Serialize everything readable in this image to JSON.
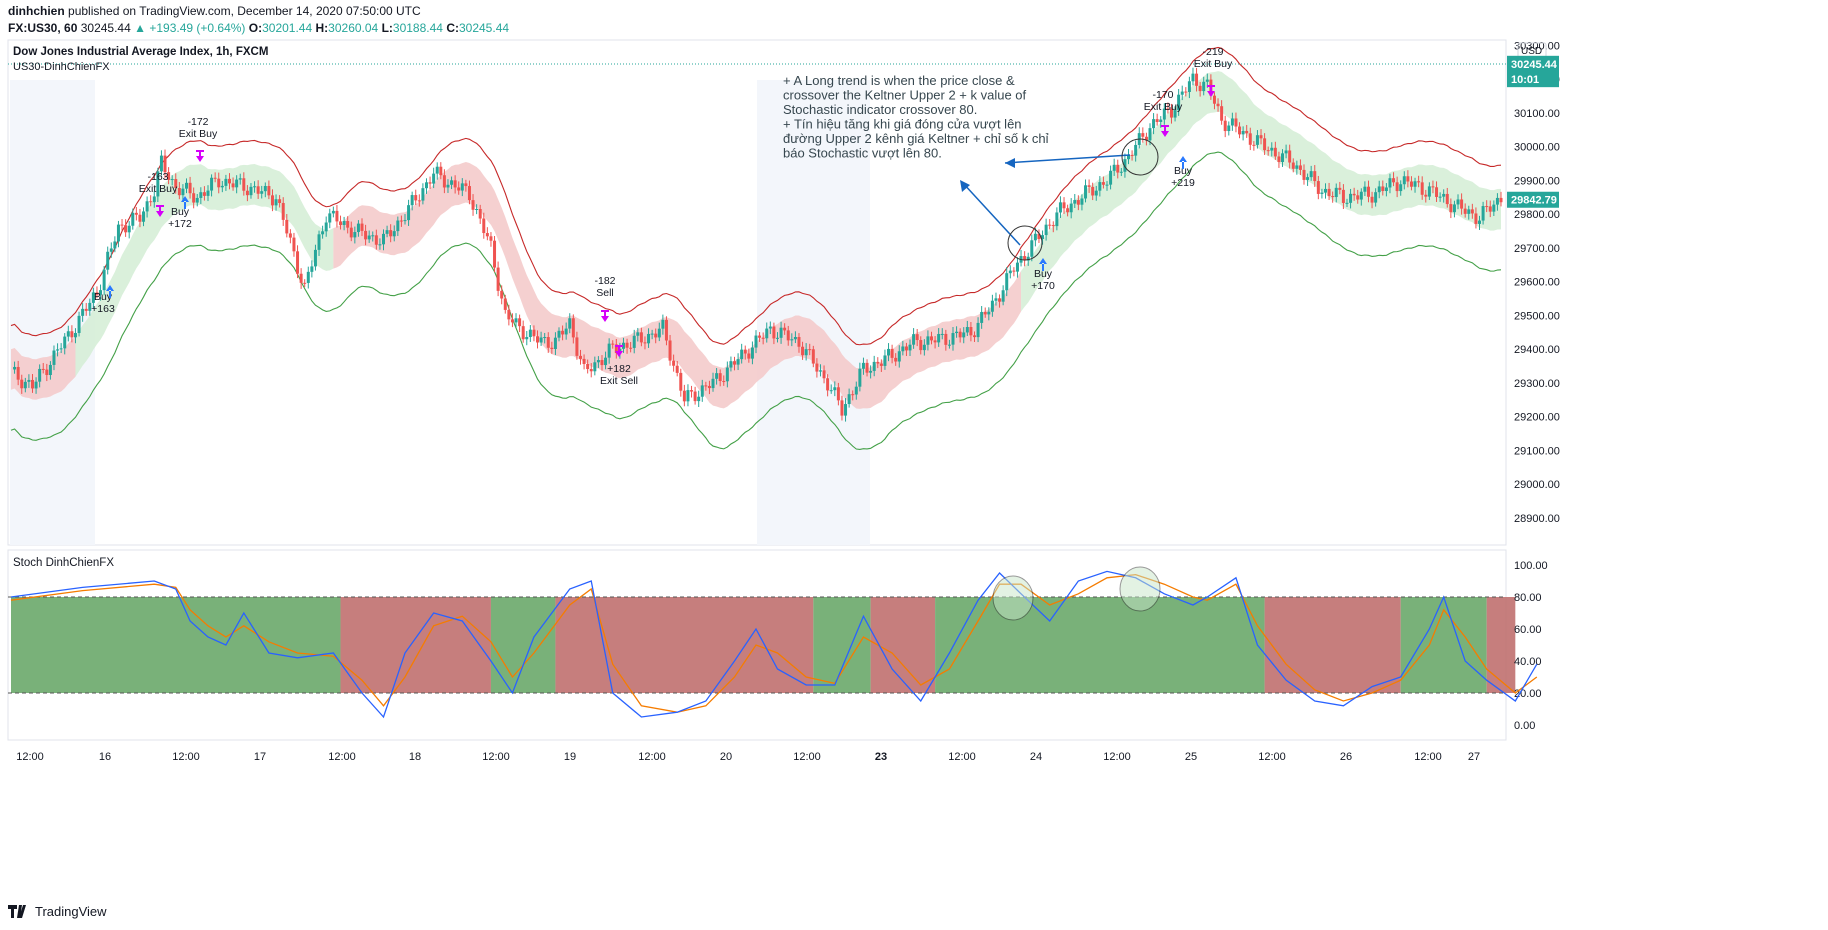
{
  "header": {
    "author": "dinhchien",
    "published": "published on TradingView.com, December 14, 2020 07:50:00 UTC",
    "symbol": "FX:US30, 60",
    "last": "30245.44",
    "change": "▲ +193.49 (+0.64%)",
    "o_label": "O:",
    "o_val": "30201.44",
    "h_label": "H:",
    "h_val": "30260.04",
    "l_label": "L:",
    "l_val": "30188.44",
    "c_label": "C:",
    "c_val": "30245.44"
  },
  "brand": "TradingView",
  "colors": {
    "up": "#26a69a",
    "down": "#ef5350",
    "kupper": "#c62828",
    "klower": "#43a047",
    "band_red": "#f3c8c8",
    "band_green": "#d4edd5",
    "stoch_k": "#2962ff",
    "stoch_d": "#f57c00",
    "zone_green": "#6aa86a",
    "zone_red": "#c0706f",
    "annot": "#1565c0",
    "buy": "#2979ff",
    "exit": "#d500f9"
  },
  "chart_data": [
    {
      "type": "candlestick",
      "title": "Dow Jones Industrial Average Index, 1h, FXCM",
      "subtitle": "US30-DinhChienFX",
      "currency": "USD",
      "ylim": [
        28850,
        30300
      ],
      "yticks": [
        "30300.00",
        "30200.00",
        "30100.00",
        "30000.00",
        "29900.00",
        "29800.00",
        "29700.00",
        "29600.00",
        "29500.00",
        "29400.00",
        "29300.00",
        "29200.00",
        "29100.00",
        "29000.00",
        "28900.00"
      ],
      "price_labels": [
        {
          "value": 30245.44,
          "text": "30245.44"
        },
        {
          "value": 30200,
          "text": "10:01"
        },
        {
          "value": 29842.79,
          "text": "29842.79"
        }
      ],
      "xticks": [
        "12:00",
        "16",
        "12:00",
        "17",
        "12:00",
        "18",
        "12:00",
        "19",
        "12:00",
        "20",
        "12:00",
        "23",
        "12:00",
        "24",
        "12:00",
        "25",
        "12:00",
        "26",
        "12:00",
        "27"
      ],
      "price_anchors": [
        [
          0,
          29330
        ],
        [
          6,
          29290
        ],
        [
          12,
          29380
        ],
        [
          18,
          29470
        ],
        [
          24,
          29570
        ],
        [
          30,
          29760
        ],
        [
          36,
          29790
        ],
        [
          40,
          29870
        ],
        [
          42,
          29950
        ],
        [
          46,
          29880
        ],
        [
          52,
          29850
        ],
        [
          58,
          29900
        ],
        [
          66,
          29880
        ],
        [
          74,
          29850
        ],
        [
          82,
          29580
        ],
        [
          88,
          29800
        ],
        [
          96,
          29750
        ],
        [
          104,
          29720
        ],
        [
          110,
          29800
        ],
        [
          118,
          29920
        ],
        [
          128,
          29860
        ],
        [
          134,
          29700
        ],
        [
          138,
          29500
        ],
        [
          146,
          29430
        ],
        [
          152,
          29420
        ],
        [
          156,
          29480
        ],
        [
          160,
          29330
        ],
        [
          168,
          29400
        ],
        [
          176,
          29430
        ],
        [
          182,
          29460
        ],
        [
          188,
          29250
        ],
        [
          196,
          29300
        ],
        [
          204,
          29380
        ],
        [
          212,
          29460
        ],
        [
          220,
          29420
        ],
        [
          228,
          29300
        ],
        [
          232,
          29220
        ],
        [
          238,
          29340
        ],
        [
          246,
          29380
        ],
        [
          252,
          29420
        ],
        [
          260,
          29430
        ],
        [
          268,
          29450
        ],
        [
          274,
          29530
        ],
        [
          280,
          29640
        ],
        [
          286,
          29720
        ],
        [
          292,
          29800
        ],
        [
          300,
          29860
        ],
        [
          306,
          29900
        ],
        [
          312,
          29970
        ],
        [
          318,
          30060
        ],
        [
          324,
          30110
        ],
        [
          330,
          30200
        ],
        [
          334,
          30180
        ],
        [
          338,
          30080
        ],
        [
          344,
          30040
        ],
        [
          350,
          30000
        ],
        [
          358,
          29950
        ],
        [
          366,
          29870
        ],
        [
          372,
          29850
        ],
        [
          380,
          29860
        ],
        [
          388,
          29900
        ],
        [
          396,
          29870
        ],
        [
          404,
          29820
        ],
        [
          410,
          29790
        ],
        [
          416,
          29850
        ]
      ],
      "annotation": [
        "+ A Long trend is when the price close &",
        "crossover the Keltner Upper 2 + k value of",
        "Stochastic indicator crossover 80.",
        "+ Tín hiệu tăng khi giá đóng cửa vượt lên",
        "đường Upper 2 kênh giá Keltner + chỉ số k chỉ",
        "báo Stochastic vượt lên 80."
      ],
      "signals": [
        {
          "label": "Buy",
          "value": "+163"
        },
        {
          "label": "Exit Buy",
          "value": "-163"
        },
        {
          "label": "Buy",
          "value": "+172"
        },
        {
          "label": "Exit Buy",
          "value": "-172"
        },
        {
          "label": "Sell",
          "value": "-182"
        },
        {
          "label": "Exit Sell",
          "value": "+182"
        },
        {
          "label": "Buy",
          "value": "+170"
        },
        {
          "label": "Exit Buy",
          "value": "-170"
        },
        {
          "label": "Buy",
          "value": "+219"
        },
        {
          "label": "Exit Buy",
          "value": "-219"
        }
      ]
    },
    {
      "type": "line",
      "title": "Stoch DinhChienFX",
      "ylim": [
        0,
        100
      ],
      "yticks": [
        "100.00",
        "80.00",
        "60.00",
        "40.00",
        "20.00",
        "0.00"
      ],
      "levels": [
        20,
        80
      ],
      "k_series": [
        [
          0,
          80
        ],
        [
          20,
          86
        ],
        [
          40,
          90
        ],
        [
          46,
          85
        ],
        [
          50,
          65
        ],
        [
          55,
          55
        ],
        [
          60,
          50
        ],
        [
          65,
          70
        ],
        [
          72,
          45
        ],
        [
          80,
          42
        ],
        [
          90,
          45
        ],
        [
          98,
          20
        ],
        [
          104,
          5
        ],
        [
          110,
          45
        ],
        [
          118,
          70
        ],
        [
          126,
          65
        ],
        [
          134,
          40
        ],
        [
          140,
          20
        ],
        [
          146,
          55
        ],
        [
          156,
          85
        ],
        [
          162,
          90
        ],
        [
          168,
          20
        ],
        [
          176,
          5
        ],
        [
          186,
          8
        ],
        [
          194,
          15
        ],
        [
          202,
          40
        ],
        [
          208,
          60
        ],
        [
          214,
          35
        ],
        [
          222,
          25
        ],
        [
          230,
          25
        ],
        [
          238,
          68
        ],
        [
          246,
          35
        ],
        [
          254,
          15
        ],
        [
          262,
          45
        ],
        [
          270,
          78
        ],
        [
          276,
          95
        ],
        [
          282,
          82
        ],
        [
          290,
          65
        ],
        [
          298,
          90
        ],
        [
          306,
          96
        ],
        [
          314,
          92
        ],
        [
          322,
          82
        ],
        [
          330,
          75
        ],
        [
          334,
          80
        ],
        [
          342,
          92
        ],
        [
          348,
          50
        ],
        [
          356,
          28
        ],
        [
          364,
          15
        ],
        [
          372,
          12
        ],
        [
          380,
          24
        ],
        [
          388,
          30
        ],
        [
          396,
          60
        ],
        [
          400,
          80
        ],
        [
          406,
          40
        ],
        [
          412,
          28
        ],
        [
          420,
          15
        ],
        [
          426,
          38
        ]
      ],
      "d_series": [
        [
          0,
          78
        ],
        [
          20,
          84
        ],
        [
          40,
          88
        ],
        [
          46,
          86
        ],
        [
          50,
          72
        ],
        [
          55,
          62
        ],
        [
          60,
          55
        ],
        [
          65,
          62
        ],
        [
          72,
          52
        ],
        [
          80,
          45
        ],
        [
          90,
          43
        ],
        [
          98,
          28
        ],
        [
          104,
          12
        ],
        [
          110,
          30
        ],
        [
          118,
          62
        ],
        [
          126,
          68
        ],
        [
          134,
          52
        ],
        [
          140,
          30
        ],
        [
          146,
          45
        ],
        [
          156,
          75
        ],
        [
          162,
          85
        ],
        [
          168,
          38
        ],
        [
          176,
          12
        ],
        [
          186,
          8
        ],
        [
          194,
          12
        ],
        [
          202,
          30
        ],
        [
          208,
          50
        ],
        [
          214,
          45
        ],
        [
          222,
          30
        ],
        [
          230,
          26
        ],
        [
          238,
          55
        ],
        [
          246,
          45
        ],
        [
          254,
          25
        ],
        [
          262,
          35
        ],
        [
          270,
          65
        ],
        [
          276,
          88
        ],
        [
          282,
          88
        ],
        [
          290,
          75
        ],
        [
          298,
          82
        ],
        [
          306,
          92
        ],
        [
          314,
          94
        ],
        [
          322,
          88
        ],
        [
          330,
          80
        ],
        [
          334,
          78
        ],
        [
          342,
          88
        ],
        [
          348,
          62
        ],
        [
          356,
          38
        ],
        [
          364,
          22
        ],
        [
          372,
          15
        ],
        [
          380,
          20
        ],
        [
          388,
          28
        ],
        [
          396,
          50
        ],
        [
          400,
          72
        ],
        [
          406,
          55
        ],
        [
          412,
          35
        ],
        [
          420,
          20
        ],
        [
          426,
          30
        ]
      ],
      "zones": [
        [
          0,
          92,
          "green"
        ],
        [
          92,
          134,
          "red"
        ],
        [
          134,
          152,
          "green"
        ],
        [
          152,
          224,
          "red"
        ],
        [
          224,
          240,
          "green"
        ],
        [
          240,
          258,
          "red"
        ],
        [
          258,
          350,
          "green"
        ],
        [
          350,
          388,
          "red"
        ],
        [
          388,
          412,
          "green"
        ],
        [
          412,
          420,
          "red"
        ]
      ]
    }
  ]
}
